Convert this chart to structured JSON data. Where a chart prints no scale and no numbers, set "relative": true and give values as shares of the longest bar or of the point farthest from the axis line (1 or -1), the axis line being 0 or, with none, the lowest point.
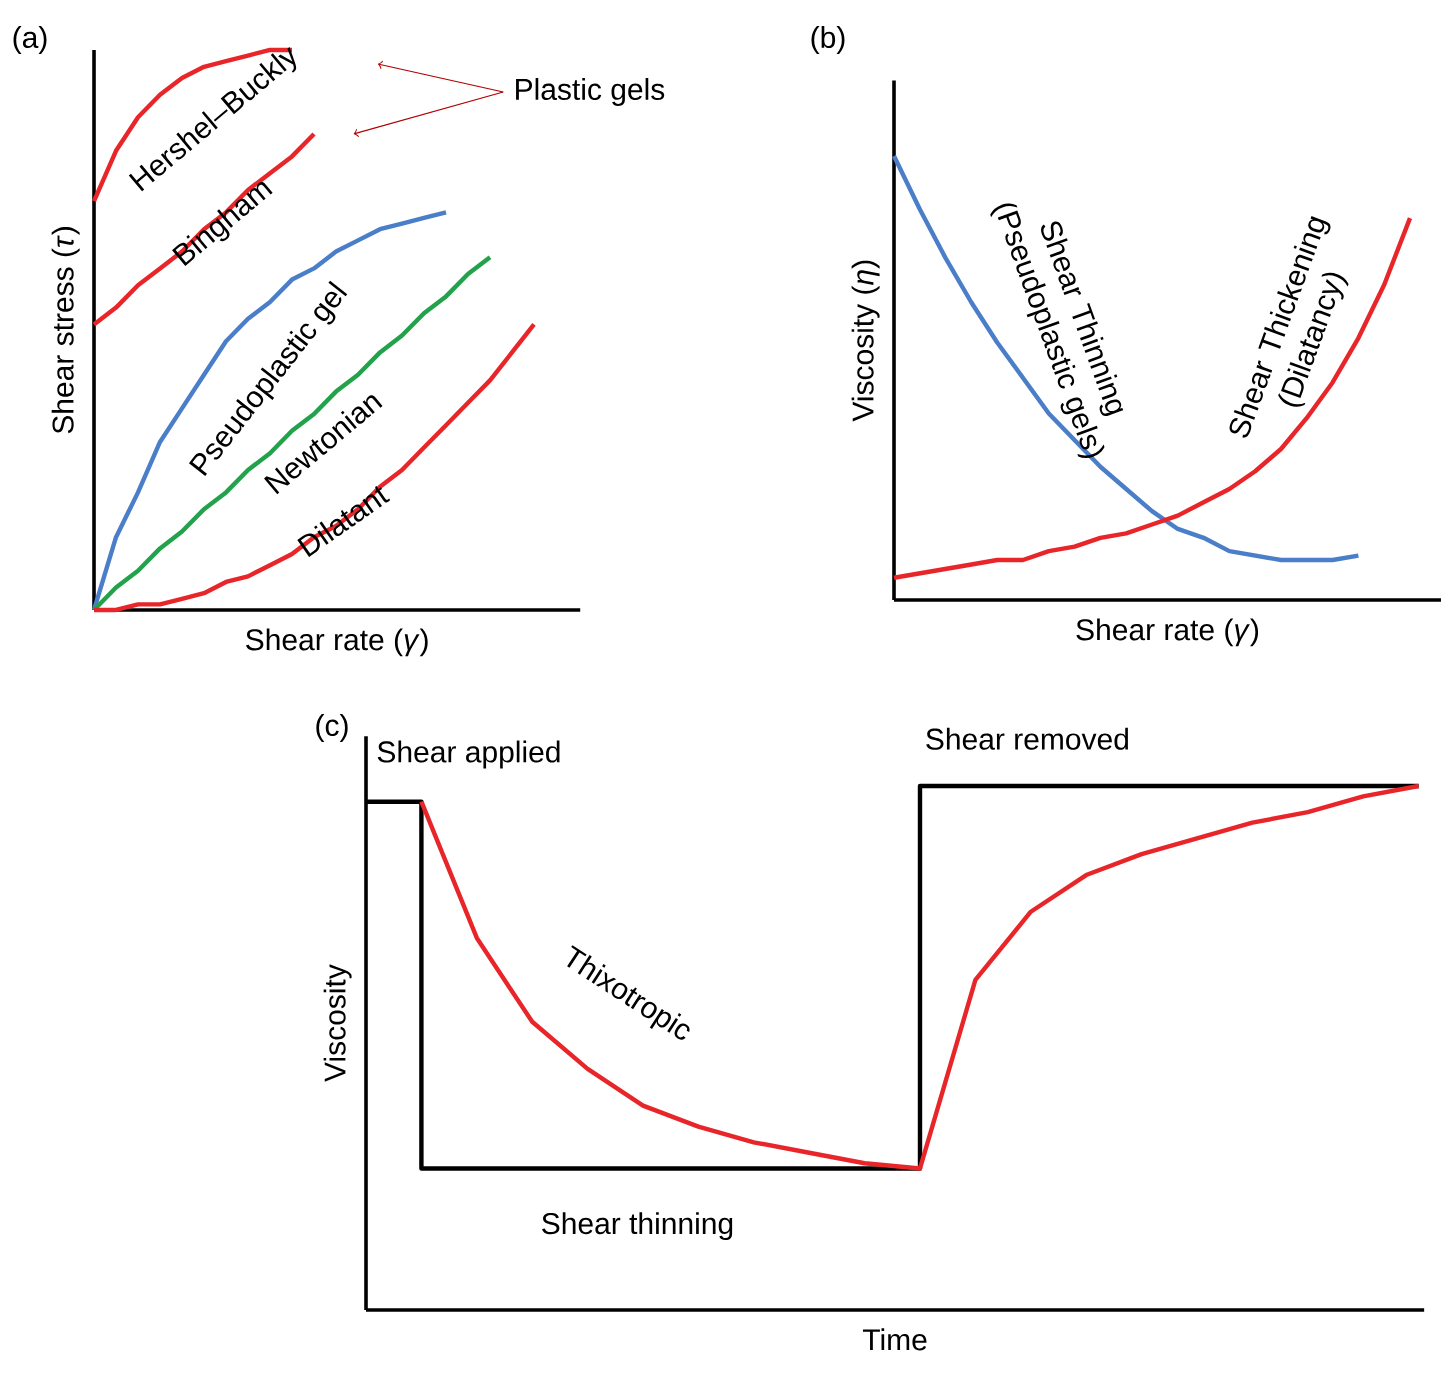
{
  "chart_data": [
    {
      "type": "line",
      "relative": true,
      "title": "(a)",
      "xlabel": "Shear rate (*γ*)",
      "ylabel": "Shear stress (*τ*)",
      "categories": [
        null,
        null,
        null,
        null,
        null,
        null,
        null,
        null,
        null,
        null,
        null,
        null,
        null,
        null,
        null,
        null,
        null,
        null,
        null,
        null,
        null
      ],
      "series": [
        {
          "name": "Hershel–Buckly",
          "color": "#e8262a",
          "values": [
            0.73,
            0.82,
            0.88,
            0.92,
            0.95,
            0.97,
            0.98,
            0.99,
            1.0,
            1.0,
            null,
            null,
            null,
            null,
            null,
            null,
            null,
            null,
            null,
            null,
            null
          ]
        },
        {
          "name": "Bingham",
          "color": "#e8262a",
          "values": [
            0.51,
            0.54,
            0.58,
            0.61,
            0.64,
            0.68,
            0.71,
            0.75,
            0.78,
            0.81,
            0.85,
            null,
            null,
            null,
            null,
            null,
            null,
            null,
            null,
            null,
            null
          ]
        },
        {
          "name": "Pseudoplastic gel",
          "color": "#4a7ec8",
          "values": [
            0,
            0.13,
            0.21,
            0.3,
            0.36,
            0.42,
            0.48,
            0.52,
            0.55,
            0.59,
            0.61,
            0.64,
            0.66,
            0.68,
            0.69,
            0.7,
            0.71,
            null,
            null,
            null,
            null
          ]
        },
        {
          "name": "Newtonian",
          "color": "#22a24a",
          "values": [
            0,
            0.04,
            0.07,
            0.11,
            0.14,
            0.18,
            0.21,
            0.25,
            0.28,
            0.32,
            0.35,
            0.39,
            0.42,
            0.46,
            0.49,
            0.53,
            0.56,
            0.6,
            0.63,
            null,
            null
          ]
        },
        {
          "name": "Dilatant",
          "color": "#e8262a",
          "values": [
            0,
            0.0,
            0.01,
            0.01,
            0.02,
            0.03,
            0.05,
            0.06,
            0.08,
            0.1,
            0.13,
            0.15,
            0.18,
            0.22,
            0.25,
            0.29,
            0.33,
            0.37,
            0.41,
            0.46,
            0.51
          ]
        }
      ],
      "annotations": [
        "Plastic gels"
      ]
    },
    {
      "type": "line",
      "relative": true,
      "title": "(b)",
      "xlabel": "Shear rate (*γ*)",
      "ylabel": "Viscosity (*η*)",
      "categories": [
        null,
        null,
        null,
        null,
        null,
        null,
        null,
        null,
        null,
        null,
        null,
        null,
        null,
        null,
        null,
        null,
        null,
        null,
        null,
        null,
        null
      ],
      "series": [
        {
          "name": "Shear Thinning (Pseudoplastic gels)",
          "color": "#4a7ec8",
          "values": [
            1.0,
            0.88,
            0.77,
            0.67,
            0.58,
            0.5,
            0.42,
            0.36,
            0.3,
            0.25,
            0.2,
            0.16,
            0.14,
            0.11,
            0.1,
            0.09,
            0.09,
            0.09,
            0.1,
            null,
            null
          ]
        },
        {
          "name": "Shear Thickening (Dilatancy)",
          "color": "#e8262a",
          "values": [
            0.05,
            0.06,
            0.07,
            0.08,
            0.09,
            0.09,
            0.11,
            0.12,
            0.14,
            0.15,
            0.17,
            0.19,
            0.22,
            0.25,
            0.29,
            0.34,
            0.41,
            0.49,
            0.59,
            0.71,
            0.86
          ]
        }
      ]
    },
    {
      "type": "line",
      "relative": true,
      "title": "(c)",
      "xlabel": "Time",
      "ylabel": "Viscosity",
      "categories": [
        null,
        null,
        null,
        null,
        null,
        null,
        null,
        null,
        null,
        null,
        null,
        null,
        null,
        null,
        null,
        null,
        null,
        null,
        null,
        null
      ],
      "series": [
        {
          "name": "Shear thinning",
          "type": "step",
          "color": "#000000",
          "values": [
            0.97,
            0.27,
            0.27,
            0.27,
            0.27,
            0.27,
            0.27,
            0.27,
            0.27,
            0.27,
            1.0,
            1.0,
            1.0,
            1.0,
            1.0,
            1.0,
            1.0,
            1.0,
            1.0,
            1.0
          ]
        },
        {
          "name": "Thixotropic",
          "color": "#e8262a",
          "values": [
            null,
            0.97,
            0.71,
            0.55,
            0.46,
            0.39,
            0.35,
            0.32,
            0.3,
            0.28,
            0.27,
            0.63,
            0.76,
            0.83,
            0.87,
            0.9,
            0.93,
            0.95,
            0.98,
            1.0
          ]
        }
      ],
      "annotations": [
        "Shear applied",
        "Shear removed"
      ]
    }
  ]
}
